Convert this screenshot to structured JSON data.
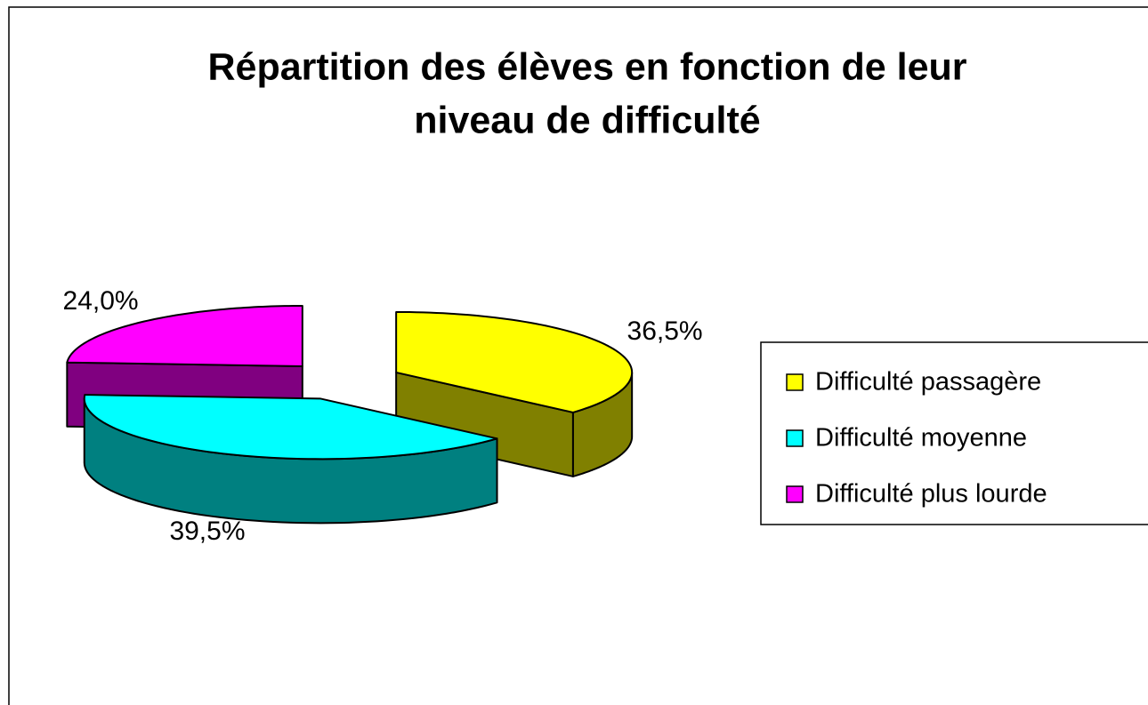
{
  "chart_data": {
    "type": "pie3d",
    "title": [
      "Répartition des élèves en fonction de leur",
      "niveau de difficulté"
    ],
    "categories": [
      "Difficulté passagère",
      "Difficulté moyenne",
      "Difficulté plus lourde"
    ],
    "values": [
      36.5,
      39.5,
      24.0
    ],
    "value_labels": [
      "36,5%",
      "39,5%",
      "24,0%"
    ],
    "colors": [
      "#ffff00",
      "#00ffff",
      "#ff00ff"
    ],
    "legend": "right"
  }
}
